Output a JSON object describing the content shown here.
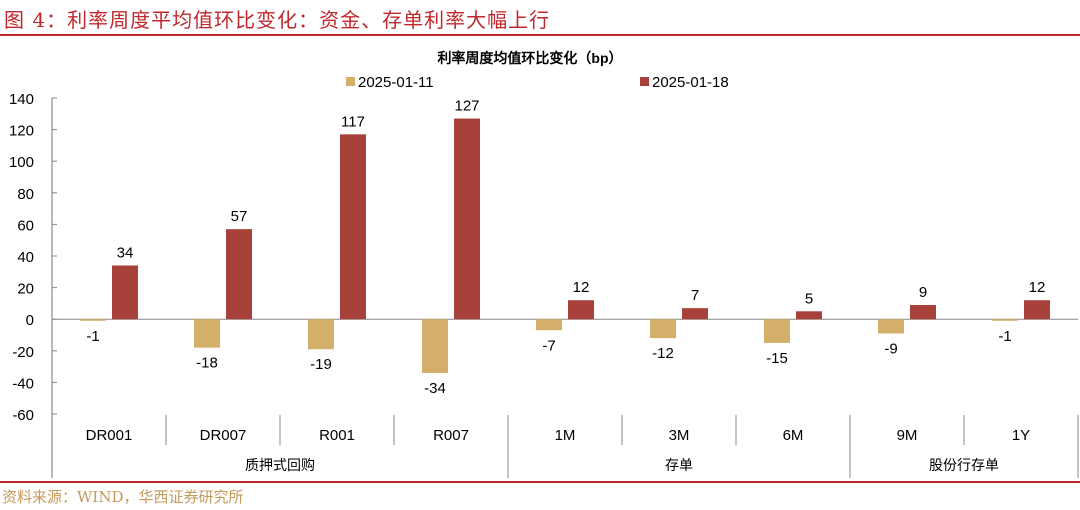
{
  "header": {
    "figure_title": "图 4：利率周度平均值环比变化：资金、存单利率大幅上行",
    "source": "资料来源：WIND，华西证券研究所"
  },
  "chart_data": {
    "type": "bar",
    "title": "利率周度均值环比变化（bp）",
    "categories": [
      "DR001",
      "DR007",
      "R001",
      "R007",
      "1M",
      "3M",
      "6M",
      "9M",
      "1Y"
    ],
    "groups": [
      {
        "label": "质押式回购",
        "count": 4
      },
      {
        "label": "存单",
        "count": 3
      },
      {
        "label": "股份行存单",
        "count": 2
      }
    ],
    "series": [
      {
        "name": "2025-01-11",
        "color": "#D4AF6A",
        "values": [
          -1,
          -18,
          -19,
          -34,
          -7,
          -12,
          -15,
          -9,
          -1
        ]
      },
      {
        "name": "2025-01-18",
        "color": "#A8413A",
        "values": [
          34,
          57,
          117,
          127,
          12,
          7,
          5,
          9,
          12
        ]
      }
    ],
    "ylim": [
      -60,
      140
    ],
    "yticks": [
      140,
      120,
      100,
      80,
      60,
      40,
      20,
      0,
      -20,
      -40,
      -60
    ],
    "legend": "top",
    "grid": false,
    "data_labels": true
  }
}
